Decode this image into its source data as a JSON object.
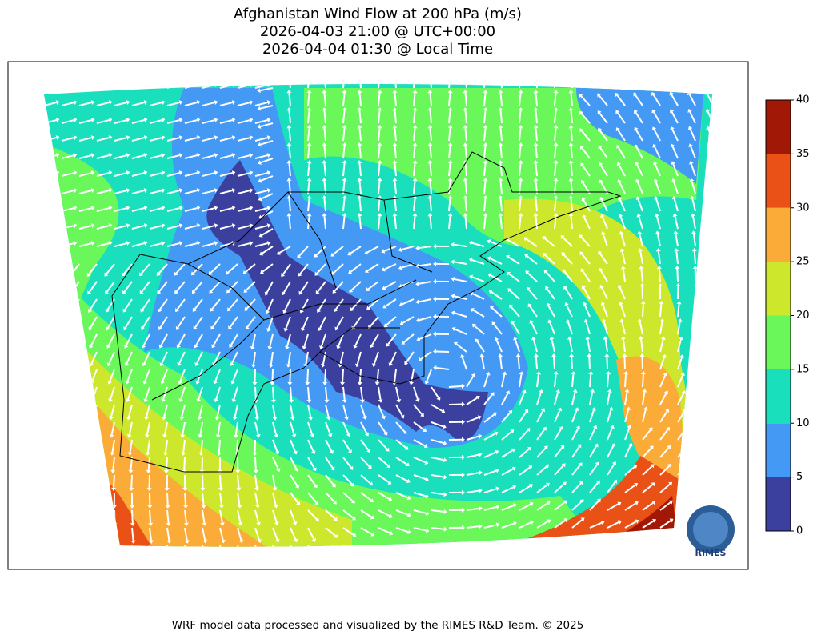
{
  "title": [
    "Afghanistan Wind Flow at 200 hPa (m/s)",
    "2026-04-03 21:00 @ UTC+00:00",
    "2026-04-04 01:30 @ Local Time"
  ],
  "colorbar": {
    "ticks": [
      0,
      5,
      10,
      15,
      20,
      25,
      30,
      35,
      40
    ],
    "colors": [
      "#3b3f9d",
      "#4499f5",
      "#1adfbd",
      "#6af75a",
      "#cde82c",
      "#fbab37",
      "#ea5116",
      "#a21806"
    ]
  },
  "logo_text": "RIMES",
  "footer": "WRF model data processed and visualized by the RIMES R&D Team. © 2025"
}
